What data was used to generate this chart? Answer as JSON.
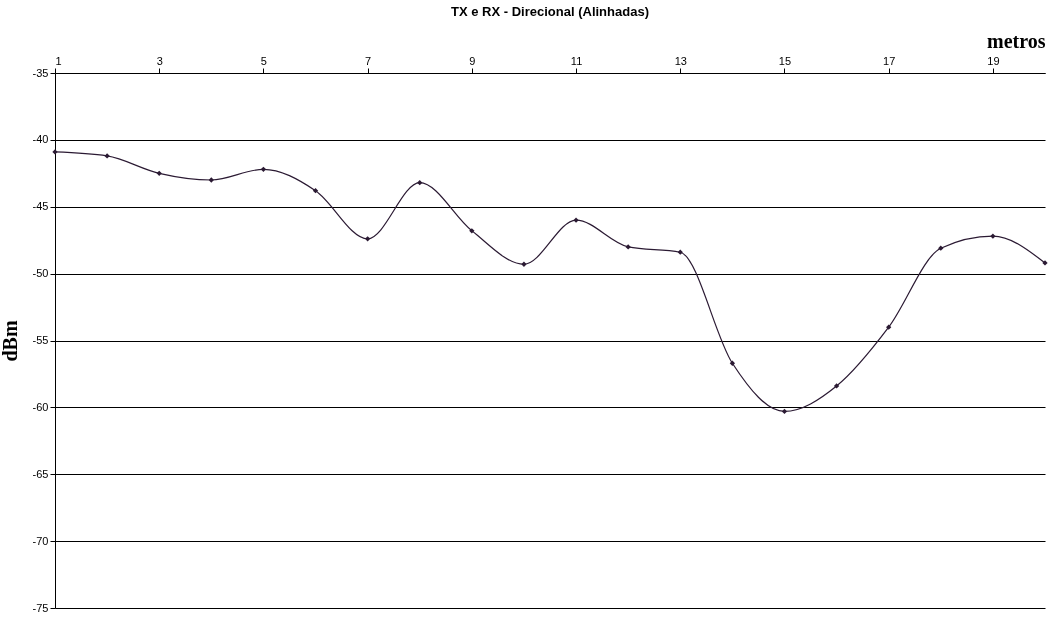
{
  "chart_data": {
    "type": "line",
    "title": "TX e RX - Direcional (Alinhadas)",
    "xlabel": "metros",
    "ylabel": "dBm",
    "x": [
      1,
      2,
      3,
      4,
      5,
      6,
      7,
      8,
      9,
      10,
      11,
      12,
      13,
      14,
      15,
      16,
      17,
      18,
      19,
      20
    ],
    "series": [
      {
        "color": "#2b1a33",
        "values": [
          -40.9,
          -41.2,
          -42.5,
          -43.0,
          -42.2,
          -43.8,
          -47.4,
          -43.2,
          -46.8,
          -49.3,
          -46.0,
          -48.0,
          -48.4,
          -56.7,
          -60.3,
          -58.4,
          -54.0,
          -48.1,
          -47.2,
          -49.2
        ]
      }
    ],
    "xlim": [
      1,
      20
    ],
    "xticks": [
      1,
      3,
      5,
      7,
      9,
      11,
      13,
      15,
      17,
      19
    ],
    "ylim": [
      -75,
      -35
    ],
    "yticks": [
      -75,
      -70,
      -65,
      -60,
      -55,
      -50,
      -45,
      -40,
      -35
    ],
    "grid": "y",
    "marker": "diamond",
    "line_style": "solid"
  }
}
